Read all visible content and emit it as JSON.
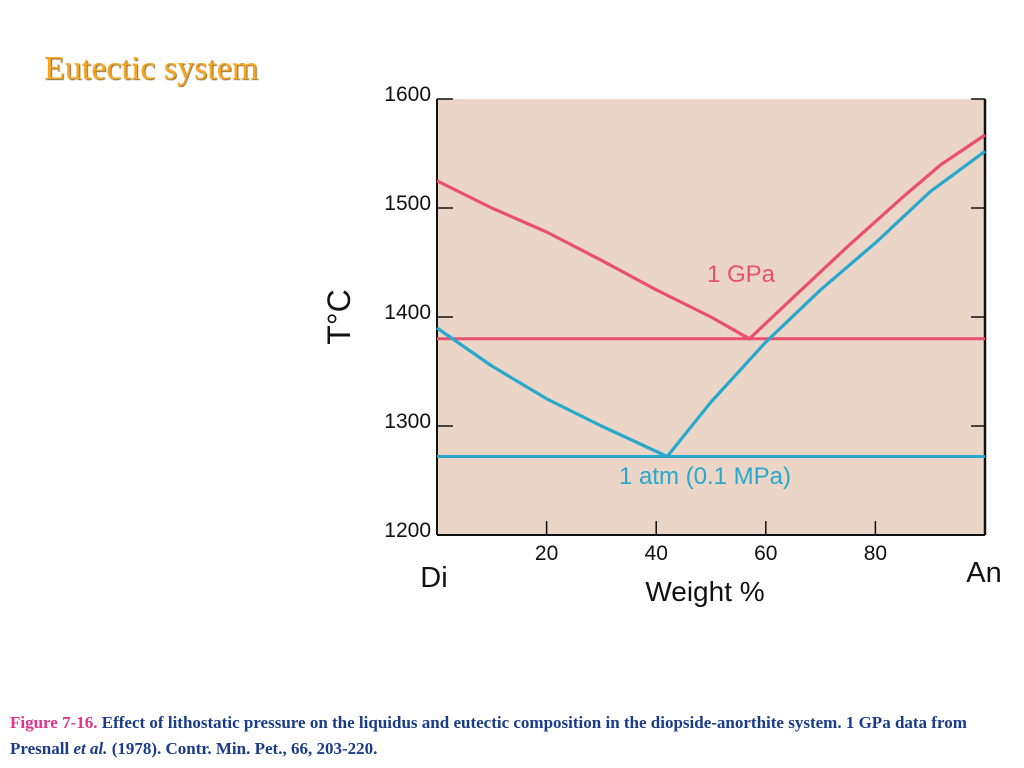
{
  "slide": {
    "title": "Eutectic system"
  },
  "caption": {
    "figure_label": "Figure 7-16.",
    "text_before_italic": " Effect of lithostatic pressure on the liquidus and eutectic composition in the diopside-anorthite system. 1 GPa data from Presnall ",
    "italic": "et al.",
    "text_after_italic": " (1978). Contr. Min. Pet., 66, 203-220."
  },
  "colors": {
    "plot_background": "#ead5c6",
    "series_1gpa": "#e8506e",
    "series_1atm": "#28a8cc",
    "axis": "#111111"
  },
  "chart_data": {
    "type": "line",
    "title": "",
    "xlabel": "Weight %",
    "ylabel": "T°C",
    "x_end_labels": {
      "left": "Di",
      "right": "An"
    },
    "xlim": [
      0,
      100
    ],
    "ylim": [
      1200,
      1600
    ],
    "x_ticks": [
      20,
      40,
      60,
      80
    ],
    "y_ticks": [
      1200,
      1300,
      1400,
      1500,
      1600
    ],
    "grid": false,
    "series": [
      {
        "name": "1 GPa",
        "color_key": "series_1gpa",
        "liquidus": [
          [
            0,
            1525
          ],
          [
            10,
            1500
          ],
          [
            20,
            1478
          ],
          [
            30,
            1452
          ],
          [
            40,
            1425
          ],
          [
            50,
            1400
          ],
          [
            57,
            1380
          ],
          [
            65,
            1418
          ],
          [
            75,
            1465
          ],
          [
            85,
            1510
          ],
          [
            92,
            1540
          ],
          [
            100,
            1567
          ]
        ],
        "eutectic_T": 1380
      },
      {
        "name": "1 atm (0.1 MPa)",
        "color_key": "series_1atm",
        "liquidus": [
          [
            0,
            1390
          ],
          [
            10,
            1355
          ],
          [
            20,
            1325
          ],
          [
            30,
            1300
          ],
          [
            42,
            1272
          ],
          [
            50,
            1322
          ],
          [
            60,
            1377
          ],
          [
            70,
            1425
          ],
          [
            80,
            1468
          ],
          [
            90,
            1515
          ],
          [
            100,
            1552
          ]
        ],
        "eutectic_T": 1272
      }
    ]
  }
}
